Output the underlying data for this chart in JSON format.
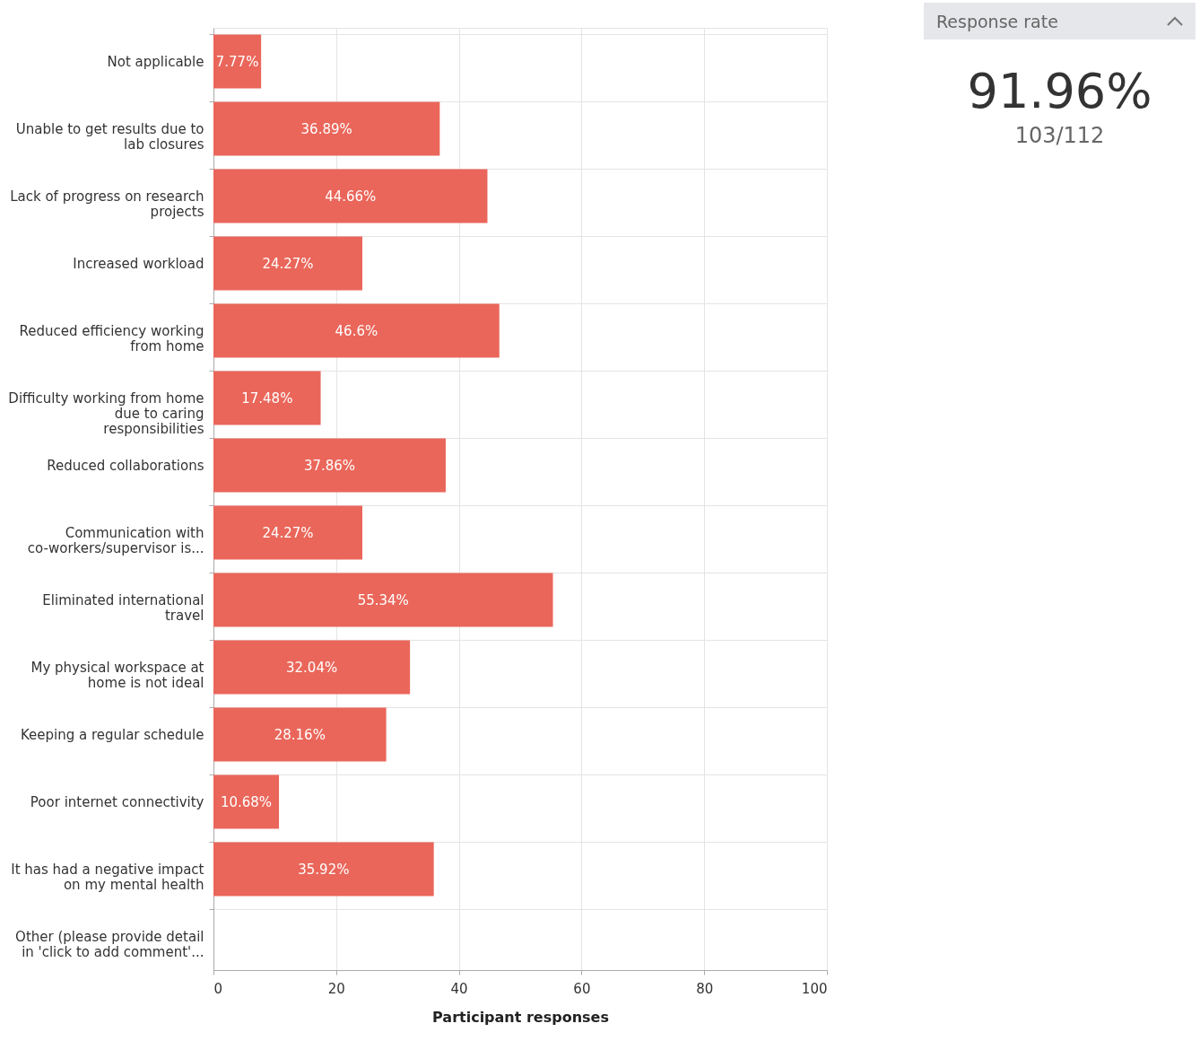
{
  "chart_data": [
    {
      "type": "bar",
      "orientation": "horizontal",
      "xlabel": "Participant responses",
      "categories": [
        "Not applicable",
        "Unable to get results due to lab closures",
        "Lack of progress on research projects",
        "Increased workload",
        "Reduced efficiency working from home",
        "Difficulty working from home due to caring responsibilities",
        "Reduced collaborations",
        "Communication with co-workers/supervisor is...",
        "Eliminated international travel",
        "My physical workspace at home is not ideal",
        "Keeping a regular schedule",
        "Poor internet connectivity",
        "It has had a negative impact on my mental health",
        "Other (please provide detail in 'click to add comment'..."
      ],
      "values": [
        7.77,
        36.89,
        44.66,
        24.27,
        46.6,
        17.48,
        37.86,
        24.27,
        55.34,
        32.04,
        28.16,
        10.68,
        35.92,
        0
      ],
      "value_labels": [
        "7.77%",
        "36.89%",
        "44.66%",
        "24.27%",
        "46.6%",
        "17.48%",
        "37.86%",
        "24.27%",
        "55.34%",
        "32.04%",
        "28.16%",
        "10.68%",
        "35.92%",
        null
      ],
      "color": "#ea665a",
      "xlim": [
        0,
        100
      ],
      "xticks": [
        0,
        20,
        40,
        60,
        80,
        100
      ],
      "grid": true
    },
    {
      "type": "other",
      "title": "Response rate",
      "annotations": [
        "91.96%",
        "103/112"
      ]
    }
  ]
}
